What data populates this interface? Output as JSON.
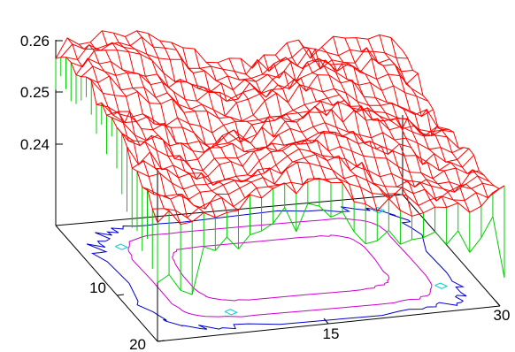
{
  "chart_data": {
    "type": "surface3d",
    "title": "",
    "xlabel": "",
    "ylabel": "",
    "zlabel": "",
    "x_ticks": [
      15,
      30
    ],
    "y_ticks": [
      10,
      20
    ],
    "z_ticks": [
      "0.24",
      "0.25",
      "0.26"
    ],
    "x_range": [
      0,
      31
    ],
    "y_range": [
      0,
      21
    ],
    "z_range": [
      0.23,
      0.262
    ],
    "grid": false,
    "legend": "none",
    "surface_color": "#ff0000",
    "skirt_color": "#00cc00",
    "contour_levels": [
      {
        "name": "outer",
        "color": "#0000cc"
      },
      {
        "name": "middle",
        "color": "#cc00cc"
      },
      {
        "name": "inner",
        "color": "#00cccc"
      }
    ]
  }
}
